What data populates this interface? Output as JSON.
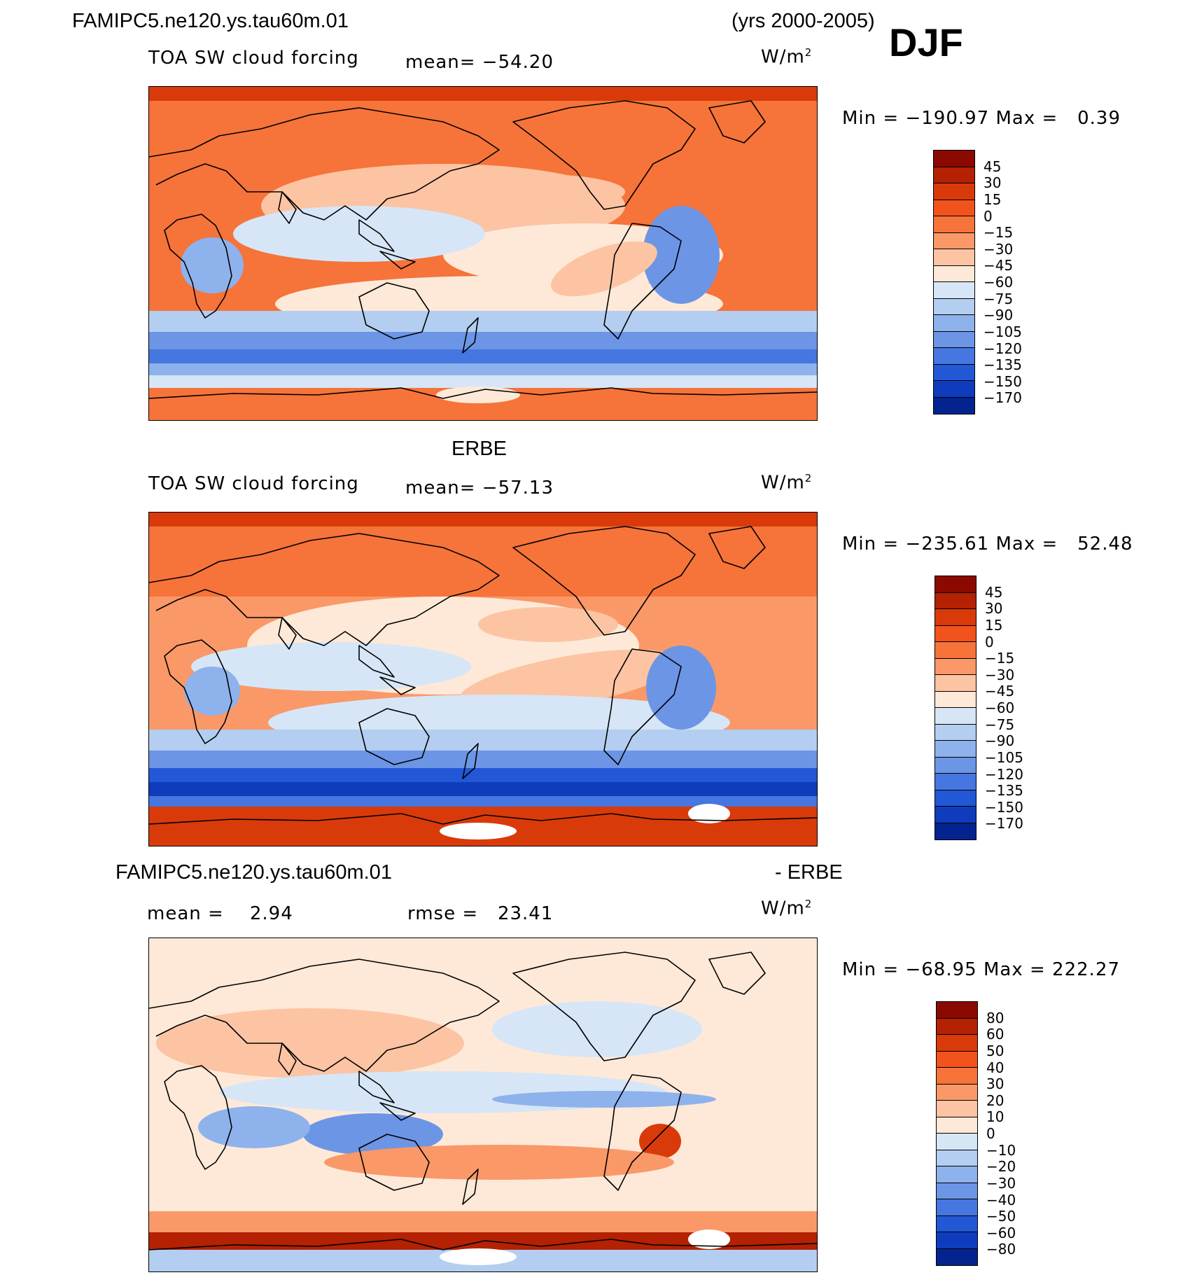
{
  "header": {
    "case_name": "FAMIPC5.ne120.ys.tau60m.01",
    "years": "(yrs 2000-2005)",
    "season": "DJF"
  },
  "panels": [
    {
      "id": "model",
      "section_title": "",
      "variable": "TOA SW cloud forcing",
      "mean_label": "mean=",
      "mean_value": "−54.20",
      "units_base": "W/m",
      "units_exp": "2",
      "min_label": "Min",
      "min_value": "−190.97",
      "max_label": "Max",
      "max_value": "0.39",
      "levels": [
        "45",
        "30",
        "15",
        "0",
        "−15",
        "−30",
        "−45",
        "−60",
        "−75",
        "−90",
        "−105",
        "−120",
        "−135",
        "−150",
        "−170"
      ],
      "colors": [
        "#8b0a00",
        "#b42103",
        "#d93a0a",
        "#f2531c",
        "#f6733a",
        "#fa9868",
        "#fcc4a3",
        "#fee9d8",
        "#d6e6f7",
        "#b3cef0",
        "#8eb2ec",
        "#6c95e6",
        "#4676e0",
        "#2258d6",
        "#0f3cbd",
        "#03238f"
      ]
    },
    {
      "id": "obs",
      "section_title": "ERBE",
      "variable": "TOA SW cloud forcing",
      "mean_label": "mean=",
      "mean_value": "−57.13",
      "units_base": "W/m",
      "units_exp": "2",
      "min_label": "Min",
      "min_value": "−235.61",
      "max_label": "Max",
      "max_value": "52.48",
      "levels": [
        "45",
        "30",
        "15",
        "0",
        "−15",
        "−30",
        "−45",
        "−60",
        "−75",
        "−90",
        "−105",
        "−120",
        "−135",
        "−150",
        "−170"
      ],
      "colors": [
        "#8b0a00",
        "#b42103",
        "#d93a0a",
        "#f2531c",
        "#f6733a",
        "#fa9868",
        "#fcc4a3",
        "#fee9d8",
        "#d6e6f7",
        "#b3cef0",
        "#8eb2ec",
        "#6c95e6",
        "#4676e0",
        "#2258d6",
        "#0f3cbd",
        "#03238f"
      ]
    },
    {
      "id": "diff",
      "section_title_left": "FAMIPC5.ne120.ys.tau60m.01",
      "section_title_right": "- ERBE",
      "mean_label": "mean =",
      "mean_value": "2.94",
      "rmse_label": "rmse =",
      "rmse_value": "23.41",
      "units_base": "W/m",
      "units_exp": "2",
      "min_label": "Min",
      "min_value": "−68.95",
      "max_label": "Max",
      "max_value": "222.27",
      "levels": [
        "80",
        "60",
        "50",
        "40",
        "30",
        "20",
        "10",
        "0",
        "−10",
        "−20",
        "−30",
        "−40",
        "−50",
        "−60",
        "−80"
      ],
      "colors": [
        "#8b0a00",
        "#b42103",
        "#d93a0a",
        "#f2531c",
        "#f6733a",
        "#fa9868",
        "#fcc4a3",
        "#fee9d8",
        "#d6e6f7",
        "#b3cef0",
        "#8eb2ec",
        "#6c95e6",
        "#4676e0",
        "#2258d6",
        "#0f3cbd",
        "#03238f"
      ]
    }
  ]
}
